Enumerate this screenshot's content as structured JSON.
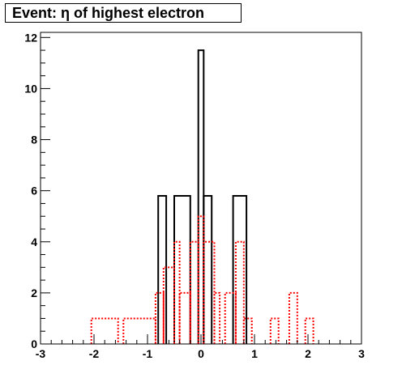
{
  "chart_data": {
    "type": "histogram",
    "title": "Event: η of highest electron",
    "xlim": [
      -3,
      3
    ],
    "ylim": [
      0,
      12.2
    ],
    "x_ticks": [
      "-3",
      "-2",
      "-1",
      "0",
      "1",
      "2",
      "3"
    ],
    "y_ticks": [
      "0",
      "2",
      "4",
      "6",
      "8",
      "10",
      "12"
    ],
    "grid": false,
    "legend": "none",
    "series": [
      {
        "color": "#000000",
        "line_style": "solid",
        "bins": [
          {
            "x0": -0.8,
            "x1": -0.65,
            "value": 5.8
          },
          {
            "x0": -0.5,
            "x1": -0.2,
            "value": 5.8
          },
          {
            "x0": -0.05,
            "x1": 0.05,
            "value": 11.5
          },
          {
            "x0": 0.05,
            "x1": 0.2,
            "value": 5.8
          },
          {
            "x0": 0.6,
            "x1": 0.85,
            "value": 5.8
          }
        ]
      },
      {
        "color": "#ff0000",
        "line_style": "dotted",
        "bins": [
          {
            "x0": -3.0,
            "x1": -2.05,
            "value": 0
          },
          {
            "x0": -2.05,
            "x1": -1.55,
            "value": 1
          },
          {
            "x0": -1.55,
            "x1": -1.45,
            "value": 0
          },
          {
            "x0": -1.45,
            "x1": -0.85,
            "value": 1
          },
          {
            "x0": -0.85,
            "x1": -0.7,
            "value": 2
          },
          {
            "x0": -0.7,
            "x1": -0.5,
            "value": 3
          },
          {
            "x0": -0.5,
            "x1": -0.4,
            "value": 4
          },
          {
            "x0": -0.4,
            "x1": -0.2,
            "value": 2
          },
          {
            "x0": -0.2,
            "x1": -0.05,
            "value": 4
          },
          {
            "x0": -0.05,
            "x1": 0.05,
            "value": 5
          },
          {
            "x0": 0.05,
            "x1": 0.25,
            "value": 4
          },
          {
            "x0": 0.25,
            "x1": 0.35,
            "value": 2
          },
          {
            "x0": 0.35,
            "x1": 0.45,
            "value": 0
          },
          {
            "x0": 0.45,
            "x1": 0.65,
            "value": 2
          },
          {
            "x0": 0.65,
            "x1": 0.8,
            "value": 4
          },
          {
            "x0": 0.8,
            "x1": 0.95,
            "value": 1
          },
          {
            "x0": 0.95,
            "x1": 1.3,
            "value": 0
          },
          {
            "x0": 1.3,
            "x1": 1.45,
            "value": 1
          },
          {
            "x0": 1.45,
            "x1": 1.65,
            "value": 0
          },
          {
            "x0": 1.65,
            "x1": 1.8,
            "value": 2
          },
          {
            "x0": 1.8,
            "x1": 1.95,
            "value": 0
          },
          {
            "x0": 1.95,
            "x1": 2.1,
            "value": 1
          },
          {
            "x0": 2.1,
            "x1": 3.0,
            "value": 0
          }
        ]
      }
    ]
  }
}
